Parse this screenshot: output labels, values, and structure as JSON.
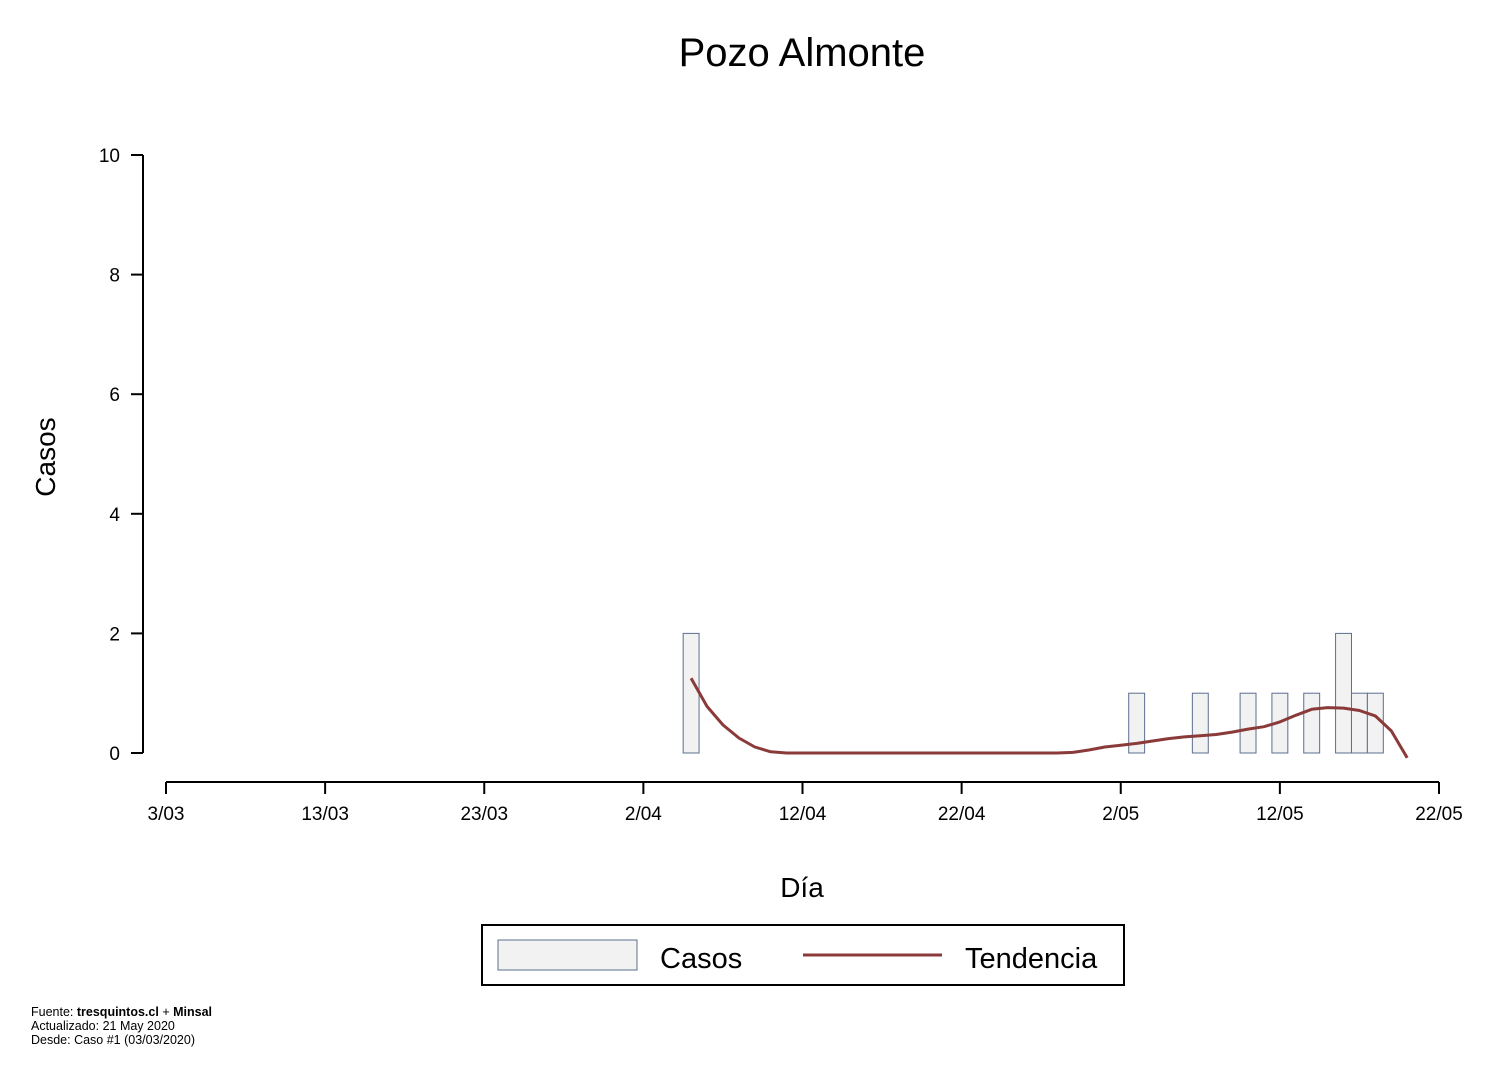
{
  "chart_data": {
    "type": "bar",
    "title": "Pozo Almonte",
    "xlabel": "Día",
    "ylabel": "Casos",
    "ylim": [
      0,
      10
    ],
    "yticks": [
      0,
      2,
      4,
      6,
      8,
      10
    ],
    "xrange": [
      "2020-03-03",
      "2020-05-22"
    ],
    "xticks": [
      {
        "date": "2020-03-03",
        "label": "3/03"
      },
      {
        "date": "2020-03-13",
        "label": "13/03"
      },
      {
        "date": "2020-03-23",
        "label": "23/03"
      },
      {
        "date": "2020-04-02",
        "label": "2/04"
      },
      {
        "date": "2020-04-12",
        "label": "12/04"
      },
      {
        "date": "2020-04-22",
        "label": "22/04"
      },
      {
        "date": "2020-05-02",
        "label": "2/05"
      },
      {
        "date": "2020-05-12",
        "label": "12/05"
      },
      {
        "date": "2020-05-22",
        "label": "22/05"
      }
    ],
    "grid": false,
    "legend_position": "bottom",
    "series": [
      {
        "name": "Casos",
        "type": "bar",
        "color": "#f2f2f2",
        "edge_color": "#5a6f8f",
        "points": [
          {
            "date": "2020-04-05",
            "value": 2
          },
          {
            "date": "2020-05-03",
            "value": 1
          },
          {
            "date": "2020-05-07",
            "value": 1
          },
          {
            "date": "2020-05-10",
            "value": 1
          },
          {
            "date": "2020-05-12",
            "value": 1
          },
          {
            "date": "2020-05-14",
            "value": 1
          },
          {
            "date": "2020-05-16",
            "value": 2
          },
          {
            "date": "2020-05-17",
            "value": 1
          },
          {
            "date": "2020-05-18",
            "value": 1
          }
        ]
      },
      {
        "name": "Tendencia",
        "type": "line",
        "color": "#8b3a3a",
        "points": [
          {
            "date": "2020-04-05",
            "value": 1.25
          },
          {
            "date": "2020-04-06",
            "value": 0.78
          },
          {
            "date": "2020-04-07",
            "value": 0.47
          },
          {
            "date": "2020-04-08",
            "value": 0.25
          },
          {
            "date": "2020-04-09",
            "value": 0.1
          },
          {
            "date": "2020-04-10",
            "value": 0.02
          },
          {
            "date": "2020-04-11",
            "value": 0.0
          },
          {
            "date": "2020-04-12",
            "value": 0.0
          },
          {
            "date": "2020-04-14",
            "value": 0.0
          },
          {
            "date": "2020-04-16",
            "value": 0.0
          },
          {
            "date": "2020-04-18",
            "value": 0.0
          },
          {
            "date": "2020-04-20",
            "value": 0.0
          },
          {
            "date": "2020-04-22",
            "value": 0.0
          },
          {
            "date": "2020-04-24",
            "value": 0.0
          },
          {
            "date": "2020-04-26",
            "value": 0.0
          },
          {
            "date": "2020-04-28",
            "value": 0.0
          },
          {
            "date": "2020-04-29",
            "value": 0.01
          },
          {
            "date": "2020-04-30",
            "value": 0.05
          },
          {
            "date": "2020-05-01",
            "value": 0.1
          },
          {
            "date": "2020-05-02",
            "value": 0.13
          },
          {
            "date": "2020-05-03",
            "value": 0.16
          },
          {
            "date": "2020-05-04",
            "value": 0.2
          },
          {
            "date": "2020-05-05",
            "value": 0.24
          },
          {
            "date": "2020-05-06",
            "value": 0.27
          },
          {
            "date": "2020-05-07",
            "value": 0.29
          },
          {
            "date": "2020-05-08",
            "value": 0.31
          },
          {
            "date": "2020-05-09",
            "value": 0.35
          },
          {
            "date": "2020-05-10",
            "value": 0.4
          },
          {
            "date": "2020-05-11",
            "value": 0.44
          },
          {
            "date": "2020-05-12",
            "value": 0.52
          },
          {
            "date": "2020-05-13",
            "value": 0.63
          },
          {
            "date": "2020-05-14",
            "value": 0.73
          },
          {
            "date": "2020-05-15",
            "value": 0.76
          },
          {
            "date": "2020-05-16",
            "value": 0.75
          },
          {
            "date": "2020-05-17",
            "value": 0.71
          },
          {
            "date": "2020-05-18",
            "value": 0.62
          },
          {
            "date": "2020-05-19",
            "value": 0.37
          },
          {
            "date": "2020-05-20",
            "value": -0.08
          }
        ]
      }
    ]
  },
  "footer": {
    "source_prefix": "Fuente: ",
    "source_a": "tresquintos.cl",
    "source_join": " + ",
    "source_b": "Minsal",
    "updated": "Actualizado: 21 May 2020",
    "since": "Desde: Caso #1  (03/03/2020)"
  }
}
